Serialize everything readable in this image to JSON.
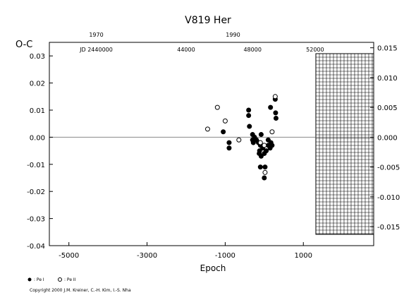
{
  "title": "V819  Her",
  "copyright": "Copyright 2000 J.M. Kreiner, C.-H. Kim, I.-S. Nha",
  "legend": [
    {
      "symbol": "filled-circle",
      "label": ": Pe I"
    },
    {
      "symbol": "open-circle",
      "label": ": Pe II"
    }
  ],
  "chart_data": {
    "type": "scatter",
    "title": "V819  Her",
    "xlabel": "Epoch",
    "ylabel": "O-C",
    "xlim": [
      -5500,
      2800
    ],
    "ylim": [
      -0.04,
      0.035
    ],
    "x_ticks": [
      "-5000",
      "-3000",
      "-1000",
      "1000"
    ],
    "y_ticks": [
      "-0.04",
      "-0.03",
      "-0.02",
      "-0.01",
      "0.00",
      "0.01",
      "0.02",
      "0.03"
    ],
    "right_ticks": [
      "-0.015",
      "-0.010",
      "-0.005",
      "0.000",
      "0.005",
      "0.010",
      "0.015"
    ],
    "year_ticks": [
      {
        "label": "1970",
        "x": -4300
      },
      {
        "label": "1990",
        "x": -800
      }
    ],
    "jd_ticks": [
      {
        "label": "JD 2440000",
        "x": -4300
      },
      {
        "label": "44000",
        "x": -2000
      },
      {
        "label": "48000",
        "x": -300
      },
      {
        "label": "52000",
        "x": 1300
      }
    ],
    "hatch_from": 1320,
    "series": [
      {
        "symbol": "filled",
        "points": [
          [
            -1050,
            0.002
          ],
          [
            -900,
            -0.002
          ],
          [
            -900,
            -0.004
          ],
          [
            -400,
            0.01
          ],
          [
            -400,
            0.008
          ],
          [
            -380,
            0.004
          ],
          [
            -300,
            0.001
          ],
          [
            -300,
            -0.001
          ],
          [
            -280,
            -0.002
          ],
          [
            -250,
            0
          ],
          [
            -200,
            -0.001
          ],
          [
            -150,
            -0.002
          ],
          [
            -130,
            -0.006
          ],
          [
            -120,
            -0.005
          ],
          [
            -100,
            -0.003
          ],
          [
            -100,
            -0.011
          ],
          [
            -80,
            0.001
          ],
          [
            -80,
            -0.007
          ],
          [
            -40,
            -0.004
          ],
          [
            0,
            -0.006
          ],
          [
            0,
            -0.015
          ],
          [
            20,
            -0.011
          ],
          [
            50,
            -0.005
          ],
          [
            100,
            -0.003
          ],
          [
            100,
            -0.001
          ],
          [
            150,
            -0.004
          ],
          [
            160,
            0.011
          ],
          [
            170,
            -0.002
          ],
          [
            200,
            -0.003
          ],
          [
            280,
            0.014
          ],
          [
            290,
            0.009
          ],
          [
            300,
            0.007
          ]
        ]
      },
      {
        "symbol": "open",
        "points": [
          [
            -1450,
            0.003
          ],
          [
            -1200,
            0.011
          ],
          [
            -1000,
            0.006
          ],
          [
            -650,
            -0.001
          ],
          [
            -100,
            -0.002
          ],
          [
            0,
            -0.003
          ],
          [
            20,
            -0.013
          ],
          [
            200,
            0.002
          ],
          [
            280,
            0.015
          ]
        ]
      }
    ]
  }
}
